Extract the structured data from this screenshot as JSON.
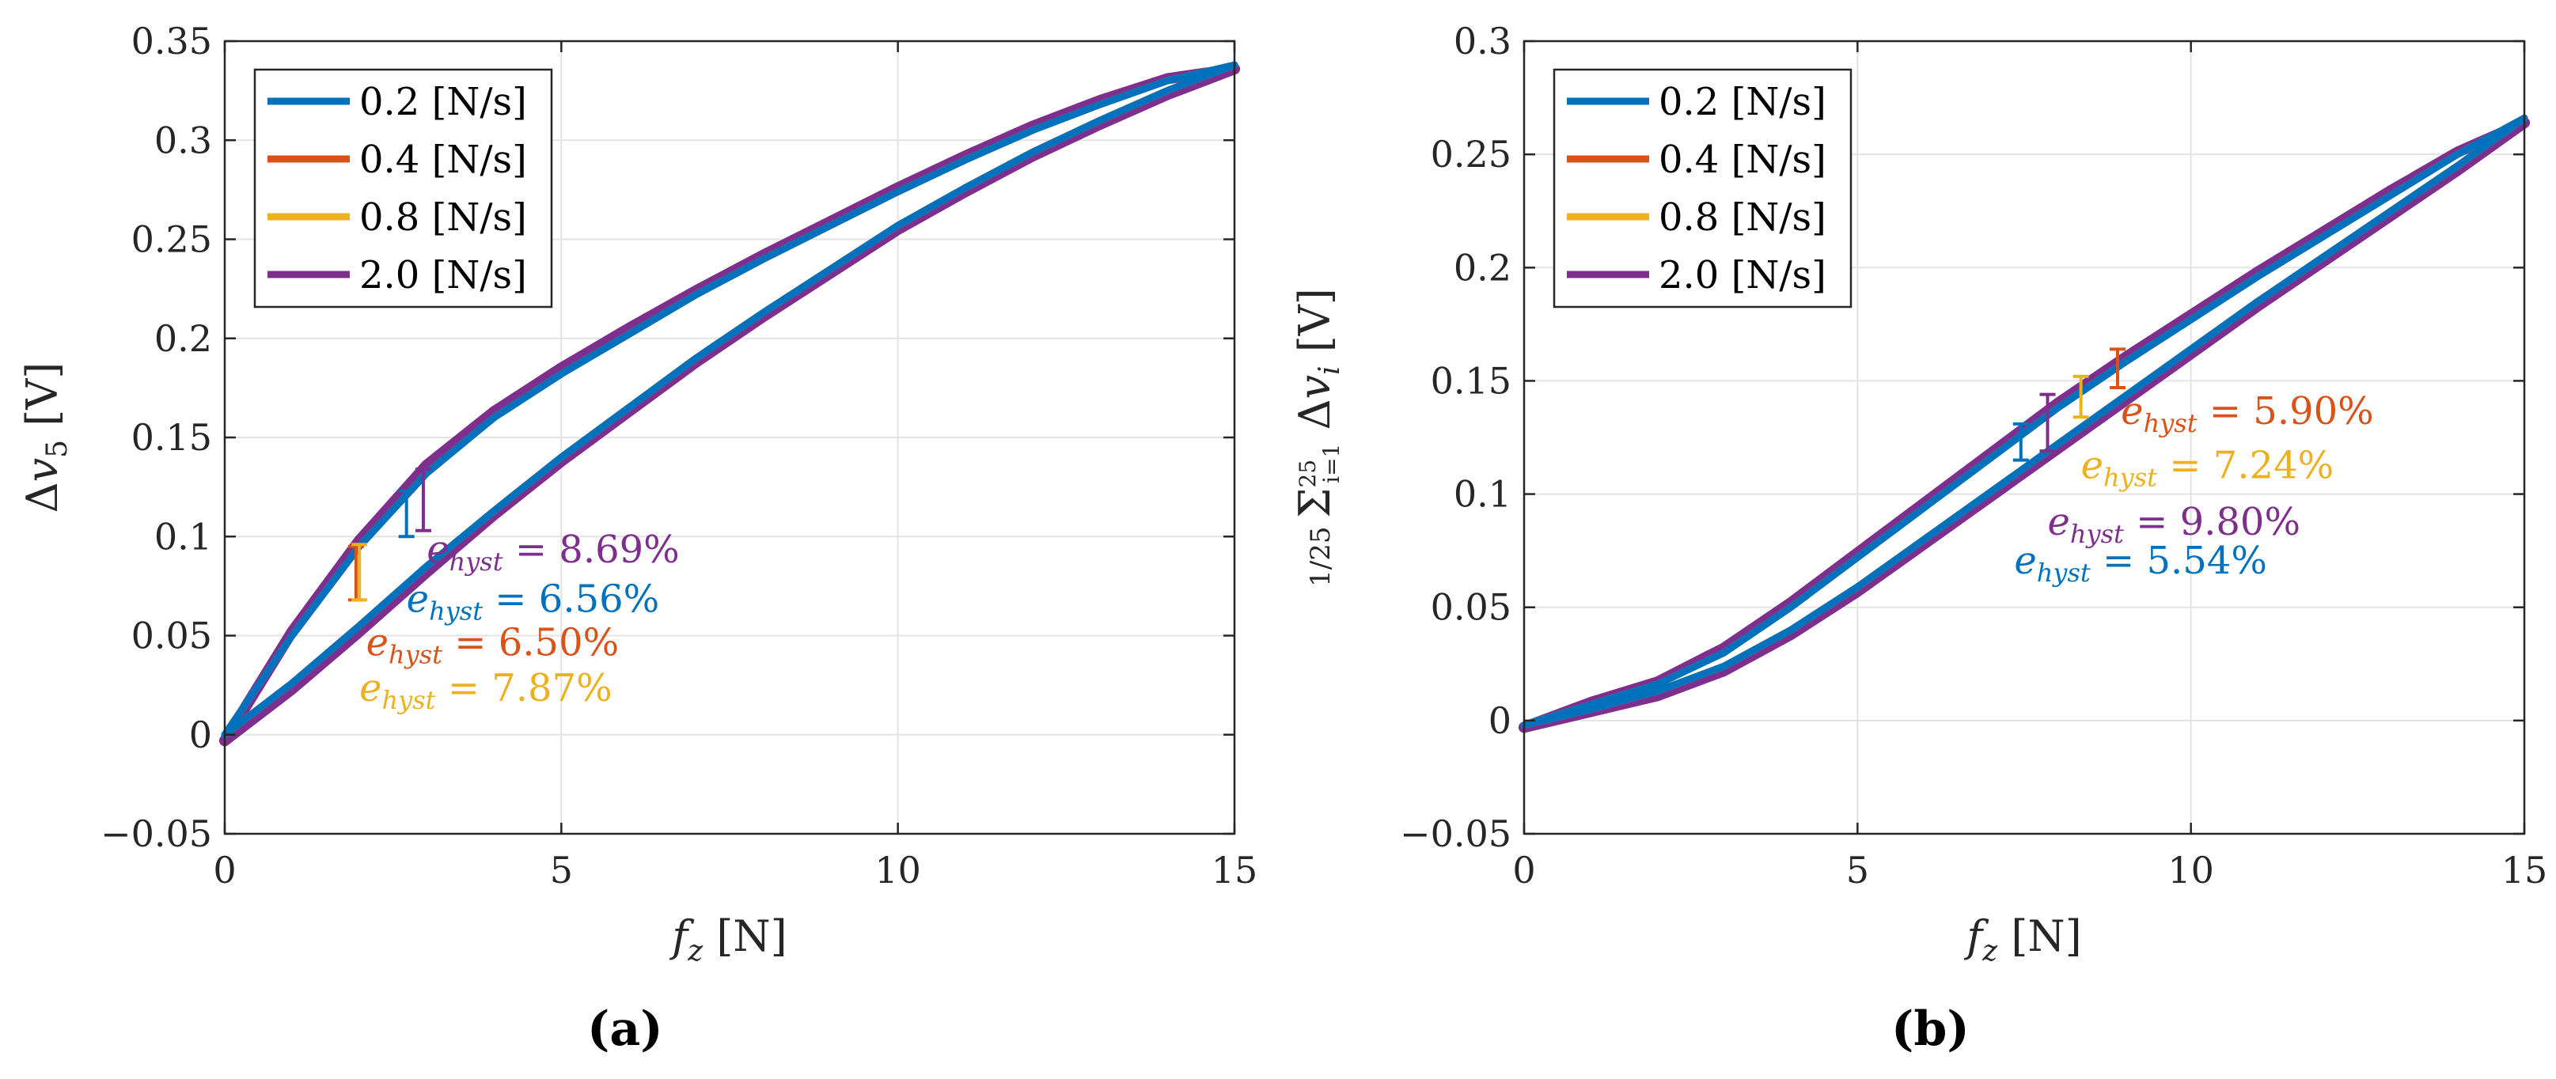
{
  "chart_data": [
    {
      "panel_label": "(a)",
      "type": "line",
      "xlabel": "f_z [N]",
      "ylabel": "Δv_5 [V]",
      "xlim": [
        0,
        15
      ],
      "ylim": [
        -0.05,
        0.35
      ],
      "xticks": [
        "0",
        "5",
        "10",
        "15"
      ],
      "yticks": [
        "−0.05",
        "0",
        "0.05",
        "0.1",
        "0.15",
        "0.2",
        "0.25",
        "0.3",
        "0.35"
      ],
      "grid": true,
      "legend_position": "top-left",
      "legend": [
        "0.2 [N/s]",
        "0.4 [N/s]",
        "0.8 [N/s]",
        "2.0 [N/s]"
      ],
      "series": [
        {
          "name": "0.2 [N/s]",
          "color": "#0072BD",
          "loading_x": [
            0,
            1,
            2,
            3,
            4,
            5,
            6,
            7,
            8,
            9,
            10,
            11,
            12,
            13,
            14,
            15
          ],
          "loading_y": [
            0.0,
            0.026,
            0.055,
            0.085,
            0.113,
            0.14,
            0.165,
            0.19,
            0.213,
            0.235,
            0.257,
            0.276,
            0.294,
            0.31,
            0.325,
            0.338
          ],
          "unloading_x": [
            15,
            14,
            13,
            12,
            11,
            10,
            9,
            8,
            7,
            6,
            5,
            4,
            3,
            2,
            1,
            0
          ],
          "unloading_y": [
            0.338,
            0.33,
            0.318,
            0.305,
            0.29,
            0.274,
            0.257,
            0.24,
            0.222,
            0.202,
            0.182,
            0.16,
            0.132,
            0.095,
            0.05,
            0.0
          ]
        },
        {
          "name": "0.4 [N/s]",
          "color": "#D95319",
          "loading_x": [
            0,
            1,
            2,
            3,
            4,
            5,
            6,
            7,
            8,
            9,
            10,
            11,
            12,
            13,
            14,
            15
          ],
          "loading_y": [
            0.0,
            0.026,
            0.055,
            0.085,
            0.113,
            0.14,
            0.165,
            0.19,
            0.213,
            0.235,
            0.257,
            0.276,
            0.294,
            0.31,
            0.325,
            0.338
          ],
          "unloading_x": [
            15,
            14,
            13,
            12,
            11,
            10,
            9,
            8,
            7,
            6,
            5,
            4,
            3,
            2,
            1,
            0
          ],
          "unloading_y": [
            0.338,
            0.33,
            0.318,
            0.305,
            0.29,
            0.274,
            0.257,
            0.24,
            0.222,
            0.202,
            0.182,
            0.16,
            0.132,
            0.095,
            0.05,
            0.0
          ]
        },
        {
          "name": "0.8 [N/s]",
          "color": "#EDB120",
          "loading_x": [
            0,
            1,
            2,
            3,
            4,
            5,
            6,
            7,
            8,
            9,
            10,
            11,
            12,
            13,
            14,
            15
          ],
          "loading_y": [
            0.0,
            0.026,
            0.055,
            0.085,
            0.113,
            0.14,
            0.165,
            0.19,
            0.213,
            0.235,
            0.257,
            0.276,
            0.294,
            0.31,
            0.325,
            0.338
          ],
          "unloading_x": [
            15,
            14,
            13,
            12,
            11,
            10,
            9,
            8,
            7,
            6,
            5,
            4,
            3,
            2,
            1,
            0
          ],
          "unloading_y": [
            0.338,
            0.33,
            0.318,
            0.305,
            0.29,
            0.274,
            0.257,
            0.24,
            0.222,
            0.202,
            0.182,
            0.16,
            0.132,
            0.095,
            0.05,
            0.0
          ]
        },
        {
          "name": "2.0 [N/s]",
          "color": "#7E2F8E",
          "loading_x": [
            0,
            1,
            2,
            3,
            4,
            5,
            6,
            7,
            8,
            9,
            10,
            11,
            12,
            13,
            14,
            15
          ],
          "loading_y": [
            -0.003,
            0.023,
            0.052,
            0.082,
            0.111,
            0.138,
            0.163,
            0.188,
            0.211,
            0.233,
            0.255,
            0.274,
            0.292,
            0.308,
            0.323,
            0.336
          ],
          "unloading_x": [
            15,
            14,
            13,
            12,
            11,
            10,
            9,
            8,
            7,
            6,
            5,
            4,
            3,
            2,
            1,
            0
          ],
          "unloading_y": [
            0.336,
            0.331,
            0.32,
            0.307,
            0.292,
            0.276,
            0.259,
            0.242,
            0.224,
            0.205,
            0.185,
            0.163,
            0.136,
            0.098,
            0.052,
            -0.003
          ]
        }
      ],
      "hysteresis_markers": [
        {
          "series": "0.2 [N/s]",
          "x": 2.7,
          "y_low": 0.1,
          "y_high": 0.123
        },
        {
          "series": "0.4 [N/s]",
          "x": 1.95,
          "y_low": 0.068,
          "y_high": 0.095
        },
        {
          "series": "0.8 [N/s]",
          "x": 2.0,
          "y_low": 0.068,
          "y_high": 0.096
        },
        {
          "series": "2.0 [N/s]",
          "x": 2.95,
          "y_low": 0.103,
          "y_high": 0.134
        }
      ],
      "annotations": [
        {
          "series": "2.0 [N/s]",
          "text": "e_hyst = 8.69%",
          "x": 3.0,
          "y": 0.087,
          "color": "#7E2F8E"
        },
        {
          "series": "0.2 [N/s]",
          "text": "e_hyst = 6.56%",
          "x": 2.7,
          "y": 0.062,
          "color": "#0072BD"
        },
        {
          "series": "0.4 [N/s]",
          "text": "e_hyst = 6.50%",
          "x": 2.1,
          "y": 0.04,
          "color": "#D95319"
        },
        {
          "series": "0.8 [N/s]",
          "text": "e_hyst = 7.87%",
          "x": 2.0,
          "y": 0.017,
          "color": "#EDB120"
        }
      ]
    },
    {
      "panel_label": "(b)",
      "type": "line",
      "xlabel": "f_z [N]",
      "ylabel": "1/25 Σ_{i=1}^{25} Δv_i [V]",
      "xlim": [
        0,
        15
      ],
      "ylim": [
        -0.05,
        0.3
      ],
      "xticks": [
        "0",
        "5",
        "10",
        "15"
      ],
      "yticks": [
        "−0.05",
        "0",
        "0.05",
        "0.1",
        "0.15",
        "0.2",
        "0.25",
        "0.3"
      ],
      "grid": true,
      "legend_position": "top-left",
      "legend": [
        "0.2 [N/s]",
        "0.4 [N/s]",
        "0.8 [N/s]",
        "2.0 [N/s]"
      ],
      "series": [
        {
          "name": "0.2 [N/s]",
          "color": "#0072BD",
          "loading_x": [
            0,
            1,
            2,
            3,
            4,
            5,
            6,
            7,
            8,
            9,
            10,
            11,
            12,
            13,
            14,
            15
          ],
          "loading_y": [
            -0.002,
            0.005,
            0.013,
            0.024,
            0.04,
            0.059,
            0.08,
            0.101,
            0.122,
            0.143,
            0.164,
            0.185,
            0.205,
            0.225,
            0.245,
            0.266
          ],
          "unloading_x": [
            15,
            14,
            13,
            12,
            11,
            10,
            9,
            8,
            7,
            6,
            5,
            4,
            3,
            2,
            1,
            0
          ],
          "unloading_y": [
            0.266,
            0.25,
            0.232,
            0.214,
            0.196,
            0.177,
            0.158,
            0.138,
            0.116,
            0.094,
            0.072,
            0.05,
            0.03,
            0.016,
            0.007,
            -0.002
          ]
        },
        {
          "name": "0.4 [N/s]",
          "color": "#D95319",
          "loading_x": [
            0,
            1,
            2,
            3,
            4,
            5,
            6,
            7,
            8,
            9,
            10,
            11,
            12,
            13,
            14,
            15
          ],
          "loading_y": [
            -0.002,
            0.005,
            0.013,
            0.024,
            0.04,
            0.059,
            0.08,
            0.101,
            0.122,
            0.143,
            0.164,
            0.185,
            0.205,
            0.225,
            0.245,
            0.266
          ],
          "unloading_x": [
            15,
            14,
            13,
            12,
            11,
            10,
            9,
            8,
            7,
            6,
            5,
            4,
            3,
            2,
            1,
            0
          ],
          "unloading_y": [
            0.266,
            0.25,
            0.232,
            0.214,
            0.196,
            0.177,
            0.158,
            0.138,
            0.116,
            0.094,
            0.072,
            0.05,
            0.03,
            0.016,
            0.007,
            -0.002
          ]
        },
        {
          "name": "0.8 [N/s]",
          "color": "#EDB120",
          "loading_x": [
            0,
            1,
            2,
            3,
            4,
            5,
            6,
            7,
            8,
            9,
            10,
            11,
            12,
            13,
            14,
            15
          ],
          "loading_y": [
            -0.002,
            0.005,
            0.013,
            0.024,
            0.04,
            0.059,
            0.08,
            0.101,
            0.122,
            0.143,
            0.164,
            0.185,
            0.205,
            0.225,
            0.245,
            0.266
          ],
          "unloading_x": [
            15,
            14,
            13,
            12,
            11,
            10,
            9,
            8,
            7,
            6,
            5,
            4,
            3,
            2,
            1,
            0
          ],
          "unloading_y": [
            0.266,
            0.25,
            0.232,
            0.214,
            0.196,
            0.177,
            0.158,
            0.138,
            0.116,
            0.094,
            0.072,
            0.05,
            0.03,
            0.016,
            0.007,
            -0.002
          ]
        },
        {
          "name": "2.0 [N/s]",
          "color": "#7E2F8E",
          "loading_x": [
            0,
            1,
            2,
            3,
            4,
            5,
            6,
            7,
            8,
            9,
            10,
            11,
            12,
            13,
            14,
            15
          ],
          "loading_y": [
            -0.003,
            0.004,
            0.011,
            0.022,
            0.038,
            0.057,
            0.078,
            0.099,
            0.12,
            0.141,
            0.162,
            0.183,
            0.203,
            0.223,
            0.243,
            0.264
          ],
          "unloading_x": [
            15,
            14,
            13,
            12,
            11,
            10,
            9,
            8,
            7,
            6,
            5,
            4,
            3,
            2,
            1,
            0
          ],
          "unloading_y": [
            0.264,
            0.251,
            0.234,
            0.216,
            0.198,
            0.179,
            0.16,
            0.14,
            0.118,
            0.096,
            0.074,
            0.052,
            0.032,
            0.017,
            0.008,
            -0.003
          ]
        }
      ],
      "hysteresis_markers": [
        {
          "series": "0.2 [N/s]",
          "x": 7.45,
          "y_low": 0.115,
          "y_high": 0.131
        },
        {
          "series": "0.4 [N/s]",
          "x": 8.9,
          "y_low": 0.147,
          "y_high": 0.164
        },
        {
          "series": "0.8 [N/s]",
          "x": 8.35,
          "y_low": 0.134,
          "y_high": 0.152
        },
        {
          "series": "2.0 [N/s]",
          "x": 7.85,
          "y_low": 0.119,
          "y_high": 0.144
        }
      ],
      "annotations": [
        {
          "series": "0.4 [N/s]",
          "text": "e_hyst = 5.90%",
          "x": 8.95,
          "y": 0.131,
          "color": "#D95319"
        },
        {
          "series": "0.8 [N/s]",
          "text": "e_hyst = 7.24%",
          "x": 8.35,
          "y": 0.107,
          "color": "#EDB120"
        },
        {
          "series": "2.0 [N/s]",
          "text": "e_hyst = 9.80%",
          "x": 7.85,
          "y": 0.082,
          "color": "#7E2F8E"
        },
        {
          "series": "0.2 [N/s]",
          "text": "e_hyst = 5.54%",
          "x": 7.35,
          "y": 0.065,
          "color": "#0072BD"
        }
      ]
    }
  ]
}
